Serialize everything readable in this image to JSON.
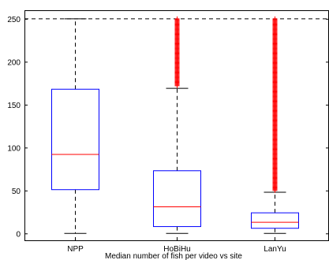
{
  "chart_data": {
    "type": "box",
    "categories": [
      "NPP",
      "HoBiHu",
      "LanYu"
    ],
    "xlabel": "Median number of fish per video vs site",
    "ylabel": "",
    "ylim": [
      -8,
      260
    ],
    "yticks": [
      0,
      50,
      100,
      150,
      200,
      250
    ],
    "reference_line": 250,
    "boxes": [
      {
        "label": "NPP",
        "whisker_low": 0,
        "q1": 51,
        "median": 92,
        "q3": 168,
        "whisker_high": 250,
        "outliers": []
      },
      {
        "label": "HoBiHu",
        "whisker_low": 0,
        "q1": 8,
        "median": 31,
        "q3": 73,
        "whisker_high": 169,
        "outlier_range": [
          172,
          250
        ]
      },
      {
        "label": "LanYu",
        "whisker_low": 0,
        "q1": 6,
        "median": 13,
        "q3": 24,
        "whisker_high": 48,
        "outlier_range": [
          50,
          250
        ]
      }
    ],
    "colors": {
      "box": "#0000ff",
      "median": "#ff0000",
      "whisker": "#000000",
      "outlier": "#ff0000",
      "reference": "#000000"
    }
  }
}
